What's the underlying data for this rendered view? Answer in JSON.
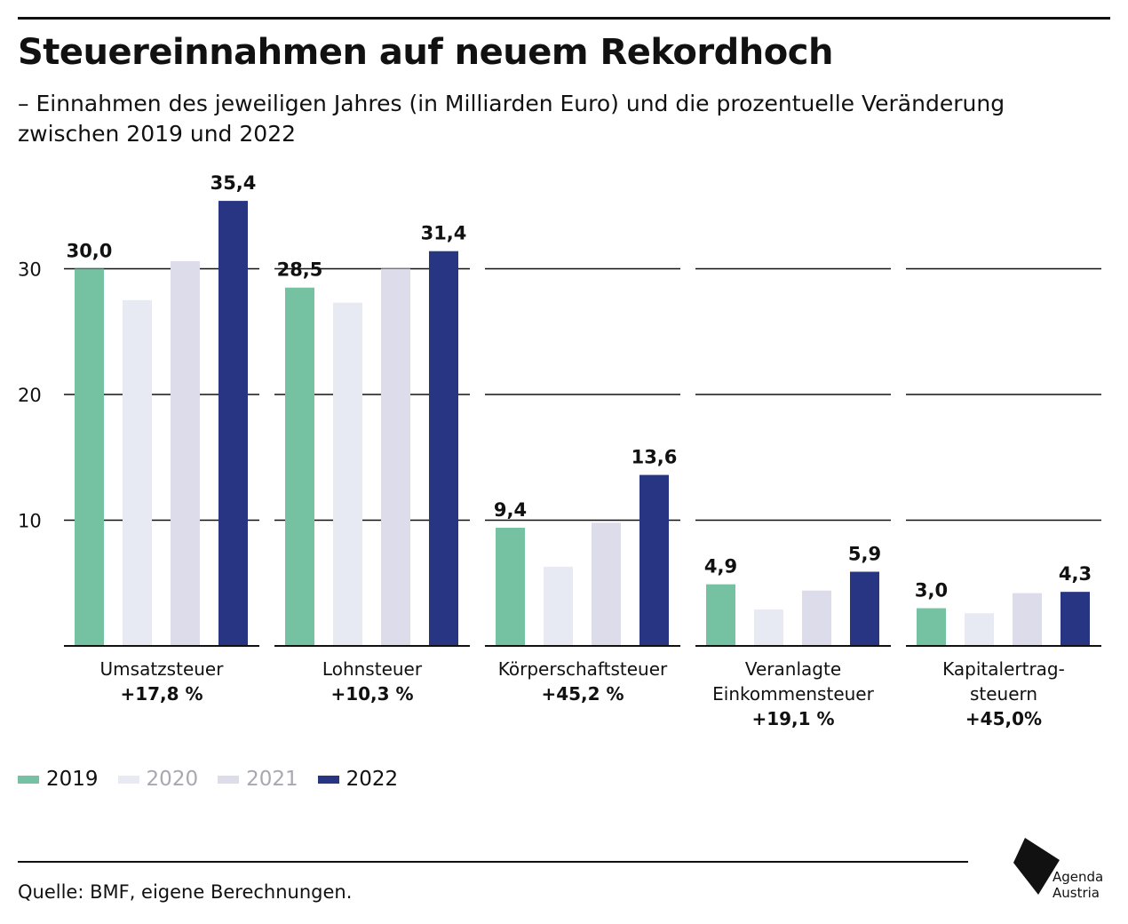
{
  "header": {
    "title": "Steuereinnahmen auf neuem Rekordhoch",
    "subtitle": "– Einnahmen des jeweiligen Jahres (in Milliarden Euro) und die prozentuelle Veränderung zwischen 2019 und 2022"
  },
  "chart_data": {
    "type": "bar",
    "title": "Steuereinnahmen auf neuem Rekordhoch",
    "ylabel": "Milliarden Euro",
    "xlabel": "",
    "ylim": [
      0,
      35.4
    ],
    "yticks": [
      10,
      20,
      30
    ],
    "grid": true,
    "categories": [
      {
        "label_lines": [
          "Umsatzsteuer"
        ],
        "change": "+17,8 %"
      },
      {
        "label_lines": [
          "Lohnsteuer"
        ],
        "change": "+10,3 %"
      },
      {
        "label_lines": [
          "Körperschaftsteuer"
        ],
        "change": "+45,2 %"
      },
      {
        "label_lines": [
          "Veranlagte",
          "Einkommensteuer"
        ],
        "change": "+19,1 %"
      },
      {
        "label_lines": [
          "Kapitalertrag-",
          "steuern"
        ],
        "change": "+45,0%"
      }
    ],
    "series": [
      {
        "name": "2019",
        "color": "#74c2a2",
        "values": [
          30.0,
          28.5,
          9.4,
          4.9,
          3.0
        ],
        "labels": [
          "30,0",
          "28,5",
          "9,4",
          "4,9",
          "3,0"
        ]
      },
      {
        "name": "2020",
        "color": "#e8eaf3",
        "values": [
          27.5,
          27.3,
          6.3,
          2.9,
          2.6
        ],
        "labels": [
          "",
          "",
          "",
          "",
          ""
        ]
      },
      {
        "name": "2021",
        "color": "#dcdcea",
        "values": [
          30.6,
          30.0,
          9.8,
          4.4,
          4.2
        ],
        "labels": [
          "",
          "",
          "",
          "",
          ""
        ]
      },
      {
        "name": "2022",
        "color": "#283583",
        "values": [
          35.4,
          31.4,
          13.6,
          5.9,
          4.3
        ],
        "labels": [
          "35,4",
          "31,4",
          "13,6",
          "5,9",
          "4,3"
        ]
      }
    ]
  },
  "legend": {
    "items": [
      {
        "label": "2019",
        "color": "#74c2a2",
        "text_color": "#111111"
      },
      {
        "label": "2020",
        "color": "#e8eaf3",
        "text_color": "#a8a8b0"
      },
      {
        "label": "2021",
        "color": "#dcdcea",
        "text_color": "#a8a8b0"
      },
      {
        "label": "2022",
        "color": "#283583",
        "text_color": "#111111"
      }
    ]
  },
  "footer": {
    "source": "Quelle: BMF, eigene Berechnungen.",
    "logo_line1": "Agenda",
    "logo_line2": "Austria"
  }
}
